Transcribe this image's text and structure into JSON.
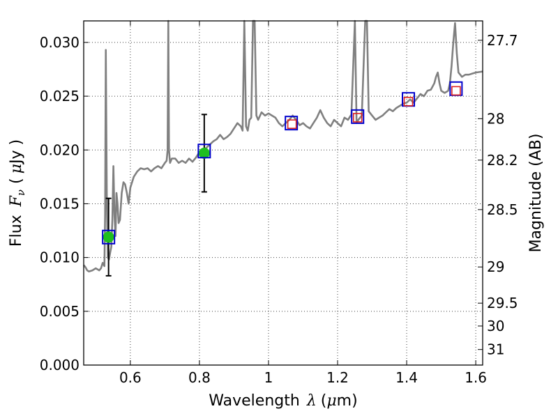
{
  "chart_data": {
    "type": "line",
    "xlabel": "Wavelength",
    "xlabel_symbol": "λ",
    "xlabel_unit_open": "(",
    "xlabel_unit_mu": "μ",
    "xlabel_unit_rest": "m)",
    "ylabel": "Flux",
    "ylabel_symbol": "F",
    "ylabel_symbol_sub": "ν",
    "ylabel_unit_open": "(",
    "ylabel_unit_mu": "μ",
    "ylabel_unit_rest": "Jy )",
    "y2label": "Magnitude (AB)",
    "xlim": [
      0.465,
      1.62
    ],
    "ylim": [
      0.0,
      0.032
    ],
    "grid": true,
    "x_ticks": [
      {
        "value": 0.6,
        "label": "0.6"
      },
      {
        "value": 0.8,
        "label": "0.8"
      },
      {
        "value": 1.0,
        "label": "1"
      },
      {
        "value": 1.2,
        "label": "1.2"
      },
      {
        "value": 1.4,
        "label": "1.4"
      },
      {
        "value": 1.6,
        "label": "1.6"
      }
    ],
    "y_ticks": [
      {
        "value": 0.0,
        "label": "0.000"
      },
      {
        "value": 0.005,
        "label": "0.005"
      },
      {
        "value": 0.01,
        "label": "0.010"
      },
      {
        "value": 0.015,
        "label": "0.015"
      },
      {
        "value": 0.02,
        "label": "0.020"
      },
      {
        "value": 0.025,
        "label": "0.025"
      },
      {
        "value": 0.03,
        "label": "0.030"
      }
    ],
    "y2_ticks": [
      {
        "value": 27.7,
        "label": "27.7"
      },
      {
        "value": 28.0,
        "label": "28"
      },
      {
        "value": 28.2,
        "label": "28.2"
      },
      {
        "value": 28.5,
        "label": "28.5"
      },
      {
        "value": 29.0,
        "label": "29"
      },
      {
        "value": 29.5,
        "label": "29.5"
      },
      {
        "value": 30.0,
        "label": "30"
      },
      {
        "value": 31.0,
        "label": "31"
      }
    ],
    "series": [
      {
        "color": "#808080",
        "style": "line",
        "points": [
          [
            0.465,
            0.0093
          ],
          [
            0.47,
            0.0091
          ],
          [
            0.475,
            0.0088
          ],
          [
            0.48,
            0.0087
          ],
          [
            0.49,
            0.0088
          ],
          [
            0.5,
            0.009
          ],
          [
            0.51,
            0.0088
          ],
          [
            0.515,
            0.009
          ],
          [
            0.52,
            0.0095
          ],
          [
            0.525,
            0.0092
          ],
          [
            0.527,
            0.014
          ],
          [
            0.529,
            0.0293
          ],
          [
            0.532,
            0.015
          ],
          [
            0.535,
            0.01
          ],
          [
            0.538,
            0.0098
          ],
          [
            0.542,
            0.0105
          ],
          [
            0.545,
            0.011
          ],
          [
            0.548,
            0.0135
          ],
          [
            0.551,
            0.0185
          ],
          [
            0.554,
            0.014
          ],
          [
            0.557,
            0.012
          ],
          [
            0.56,
            0.016
          ],
          [
            0.563,
            0.015
          ],
          [
            0.566,
            0.0132
          ],
          [
            0.57,
            0.0135
          ],
          [
            0.575,
            0.016
          ],
          [
            0.58,
            0.017
          ],
          [
            0.585,
            0.0168
          ],
          [
            0.59,
            0.016
          ],
          [
            0.595,
            0.015
          ],
          [
            0.6,
            0.0165
          ],
          [
            0.61,
            0.0175
          ],
          [
            0.62,
            0.018
          ],
          [
            0.63,
            0.0183
          ],
          [
            0.64,
            0.0182
          ],
          [
            0.65,
            0.0183
          ],
          [
            0.66,
            0.018
          ],
          [
            0.67,
            0.0183
          ],
          [
            0.68,
            0.0185
          ],
          [
            0.69,
            0.0183
          ],
          [
            0.7,
            0.0188
          ],
          [
            0.705,
            0.019
          ],
          [
            0.708,
            0.02
          ],
          [
            0.71,
            0.033
          ],
          [
            0.712,
            0.02
          ],
          [
            0.715,
            0.0188
          ],
          [
            0.72,
            0.0192
          ],
          [
            0.73,
            0.0192
          ],
          [
            0.74,
            0.0188
          ],
          [
            0.75,
            0.019
          ],
          [
            0.76,
            0.0188
          ],
          [
            0.77,
            0.0192
          ],
          [
            0.78,
            0.0189
          ],
          [
            0.79,
            0.0193
          ],
          [
            0.8,
            0.0198
          ],
          [
            0.81,
            0.02
          ],
          [
            0.82,
            0.0202
          ],
          [
            0.83,
            0.0205
          ],
          [
            0.84,
            0.0208
          ],
          [
            0.85,
            0.021
          ],
          [
            0.86,
            0.0214
          ],
          [
            0.87,
            0.021
          ],
          [
            0.88,
            0.0212
          ],
          [
            0.89,
            0.0215
          ],
          [
            0.9,
            0.022
          ],
          [
            0.91,
            0.0225
          ],
          [
            0.92,
            0.0222
          ],
          [
            0.925,
            0.0218
          ],
          [
            0.93,
            0.033
          ],
          [
            0.935,
            0.0222
          ],
          [
            0.94,
            0.0218
          ],
          [
            0.945,
            0.0228
          ],
          [
            0.95,
            0.023
          ],
          [
            0.955,
            0.033
          ],
          [
            0.96,
            0.033
          ],
          [
            0.965,
            0.0232
          ],
          [
            0.97,
            0.0228
          ],
          [
            0.98,
            0.0235
          ],
          [
            0.99,
            0.0232
          ],
          [
            1.0,
            0.0234
          ],
          [
            1.01,
            0.0232
          ],
          [
            1.02,
            0.023
          ],
          [
            1.03,
            0.0225
          ],
          [
            1.04,
            0.0222
          ],
          [
            1.05,
            0.0225
          ],
          [
            1.06,
            0.0228
          ],
          [
            1.07,
            0.0232
          ],
          [
            1.08,
            0.0228
          ],
          [
            1.09,
            0.0223
          ],
          [
            1.1,
            0.0225
          ],
          [
            1.11,
            0.0222
          ],
          [
            1.12,
            0.022
          ],
          [
            1.13,
            0.0225
          ],
          [
            1.14,
            0.023
          ],
          [
            1.15,
            0.0237
          ],
          [
            1.16,
            0.023
          ],
          [
            1.17,
            0.0225
          ],
          [
            1.18,
            0.0222
          ],
          [
            1.19,
            0.0228
          ],
          [
            1.2,
            0.0225
          ],
          [
            1.21,
            0.0222
          ],
          [
            1.22,
            0.023
          ],
          [
            1.23,
            0.0228
          ],
          [
            1.24,
            0.0233
          ],
          [
            1.25,
            0.033
          ],
          [
            1.255,
            0.0225
          ],
          [
            1.26,
            0.0228
          ],
          [
            1.27,
            0.0232
          ],
          [
            1.28,
            0.033
          ],
          [
            1.285,
            0.033
          ],
          [
            1.29,
            0.0236
          ],
          [
            1.3,
            0.0232
          ],
          [
            1.31,
            0.0228
          ],
          [
            1.32,
            0.023
          ],
          [
            1.33,
            0.0232
          ],
          [
            1.34,
            0.0235
          ],
          [
            1.35,
            0.0238
          ],
          [
            1.36,
            0.0236
          ],
          [
            1.37,
            0.0239
          ],
          [
            1.38,
            0.0241
          ],
          [
            1.39,
            0.0243
          ],
          [
            1.4,
            0.0244
          ],
          [
            1.41,
            0.0247
          ],
          [
            1.42,
            0.0244
          ],
          [
            1.43,
            0.0248
          ],
          [
            1.44,
            0.0252
          ],
          [
            1.45,
            0.025
          ],
          [
            1.46,
            0.0255
          ],
          [
            1.47,
            0.0256
          ],
          [
            1.48,
            0.0262
          ],
          [
            1.485,
            0.0268
          ],
          [
            1.49,
            0.0272
          ],
          [
            1.495,
            0.0262
          ],
          [
            1.5,
            0.0255
          ],
          [
            1.51,
            0.0253
          ],
          [
            1.52,
            0.0255
          ],
          [
            1.525,
            0.0262
          ],
          [
            1.53,
            0.0278
          ],
          [
            1.535,
            0.03
          ],
          [
            1.54,
            0.0318
          ],
          [
            1.545,
            0.029
          ],
          [
            1.55,
            0.0272
          ],
          [
            1.56,
            0.0268
          ],
          [
            1.57,
            0.027
          ],
          [
            1.58,
            0.027
          ],
          [
            1.59,
            0.0271
          ],
          [
            1.6,
            0.0272
          ],
          [
            1.62,
            0.0273
          ]
        ]
      }
    ],
    "photometry": [
      {
        "x": 0.537,
        "y": 0.0119,
        "yerr_low": 0.0083,
        "yerr_high": 0.0155,
        "color": "#1fbf1f"
      },
      {
        "x": 0.814,
        "y": 0.0197,
        "yerr_low": 0.0161,
        "yerr_high": 0.0233,
        "color": "#1fbf1f"
      }
    ],
    "model_boxes": [
      {
        "x": 0.537,
        "y": 0.0119
      },
      {
        "x": 0.814,
        "y": 0.0199
      },
      {
        "x": 1.066,
        "y": 0.0225
      },
      {
        "x": 1.258,
        "y": 0.0231
      },
      {
        "x": 1.405,
        "y": 0.0247
      },
      {
        "x": 1.543,
        "y": 0.0257
      }
    ],
    "ir_points": [
      {
        "x": 1.068,
        "y": 0.0224
      },
      {
        "x": 1.258,
        "y": 0.023
      },
      {
        "x": 1.405,
        "y": 0.0245
      },
      {
        "x": 1.543,
        "y": 0.0255
      }
    ]
  }
}
